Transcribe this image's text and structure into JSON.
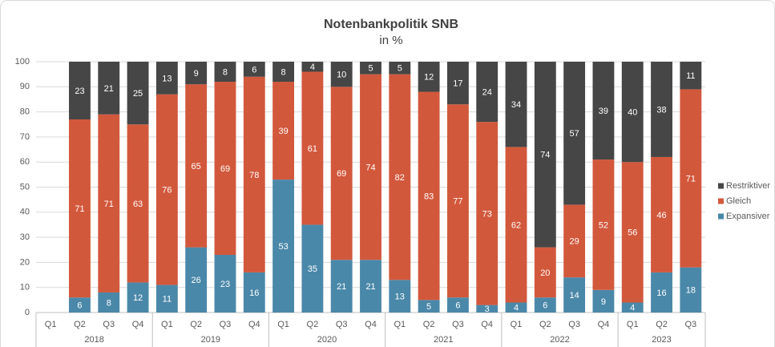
{
  "chart_data": {
    "type": "stacked_bar",
    "title": "Notenbankpolitik SNB",
    "subtitle": "in %",
    "groups": [
      {
        "label": "2018",
        "categories": [
          "Q1",
          "Q2",
          "Q3",
          "Q4"
        ]
      },
      {
        "label": "2019",
        "categories": [
          "Q1",
          "Q2",
          "Q3",
          "Q4"
        ]
      },
      {
        "label": "2020",
        "categories": [
          "Q1",
          "Q2",
          "Q3",
          "Q4"
        ]
      },
      {
        "label": "2021",
        "categories": [
          "Q1",
          "Q2",
          "Q3",
          "Q4"
        ]
      },
      {
        "label": "2022",
        "categories": [
          "Q1",
          "Q2",
          "Q3",
          "Q4"
        ]
      },
      {
        "label": "2023",
        "categories": [
          "Q1",
          "Q2",
          "Q3"
        ]
      }
    ],
    "series": [
      {
        "name": "Expansiver",
        "color": "#4a88a9",
        "values": [
          null,
          6,
          8,
          12,
          11,
          26,
          23,
          16,
          53,
          35,
          21,
          21,
          13,
          5,
          6,
          3,
          4,
          6,
          14,
          9,
          4,
          16,
          18
        ]
      },
      {
        "name": "Gleich",
        "color": "#d2583c",
        "values": [
          null,
          71,
          71,
          63,
          76,
          65,
          69,
          78,
          39,
          61,
          69,
          74,
          82,
          83,
          77,
          73,
          62,
          20,
          29,
          52,
          56,
          46,
          71
        ]
      },
      {
        "name": "Restriktiver",
        "color": "#464646",
        "values": [
          null,
          23,
          21,
          25,
          13,
          9,
          8,
          6,
          8,
          4,
          10,
          5,
          5,
          12,
          17,
          24,
          34,
          74,
          57,
          39,
          40,
          38,
          11
        ]
      }
    ],
    "ylim": [
      0,
      100
    ],
    "yticks": [
      0,
      10,
      20,
      30,
      40,
      50,
      60,
      70,
      80,
      90,
      100
    ],
    "grid": true,
    "legend": "right"
  }
}
